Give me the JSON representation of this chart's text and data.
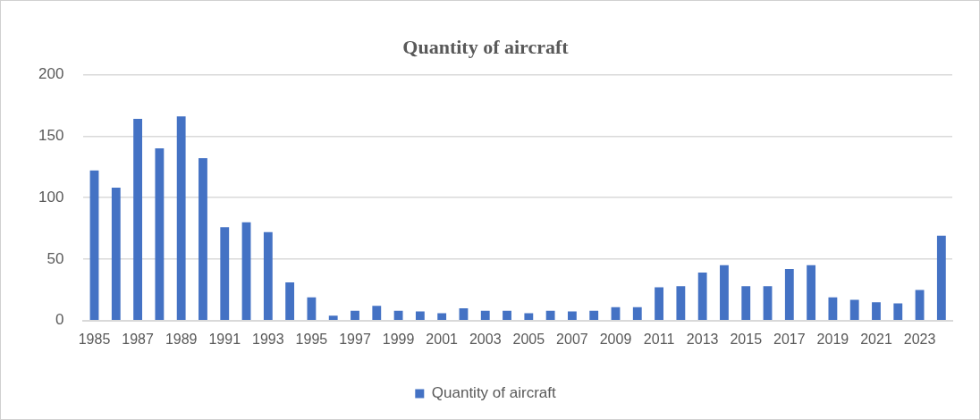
{
  "chart_data": {
    "type": "bar",
    "title": "Quantity of aircraft",
    "categories": [
      "1985",
      null,
      "1987",
      null,
      "1989",
      null,
      "1991",
      null,
      "1993",
      null,
      "1995",
      null,
      "1997",
      null,
      "1999",
      null,
      "2001",
      null,
      "2003",
      null,
      "2005",
      null,
      "2007",
      null,
      "2009",
      null,
      "2011",
      null,
      "2013",
      null,
      "2015",
      null,
      "2017",
      null,
      "2019",
      null,
      "2021",
      null,
      "2023",
      null
    ],
    "series": [
      {
        "name": "Quantity of aircraft",
        "color": "#4472c4",
        "values": [
          122,
          108,
          164,
          140,
          166,
          132,
          76,
          80,
          72,
          31,
          19,
          4,
          8,
          12,
          8,
          7.5,
          6,
          10,
          8,
          8,
          6,
          8,
          7.5,
          8,
          11,
          11,
          27,
          28,
          39,
          45,
          28,
          28,
          42,
          45,
          19,
          17,
          15,
          14,
          25,
          69
        ]
      }
    ],
    "ylim": [
      0,
      200
    ],
    "yticks": [
      0,
      50,
      100,
      150,
      200
    ],
    "grid": "y",
    "legend": "bottom"
  }
}
